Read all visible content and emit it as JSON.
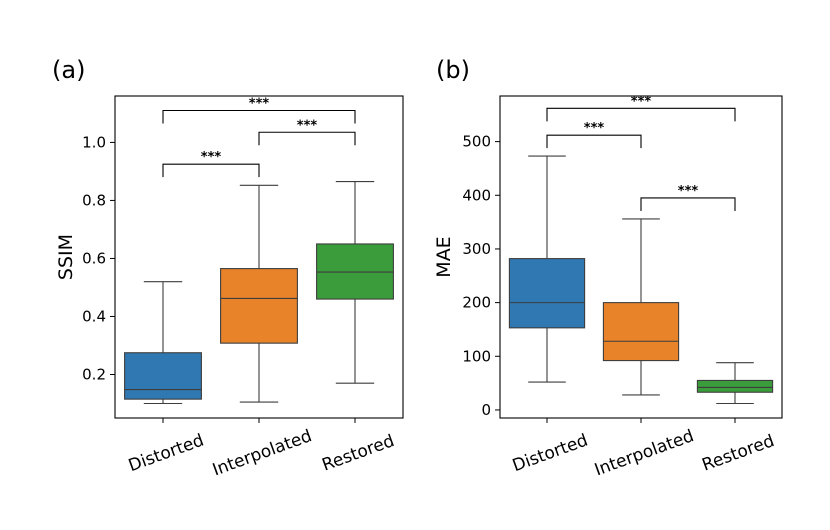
{
  "chart_data": [
    {
      "type": "box",
      "panel_label": "(a)",
      "ylabel": "SSIM",
      "ylim": [
        0.05,
        1.16
      ],
      "yticks": [
        0.2,
        0.4,
        0.6,
        0.8,
        1.0
      ],
      "ytick_labels": [
        "0.2",
        "0.4",
        "0.6",
        "0.8",
        "1.0"
      ],
      "categories": [
        "Distorted",
        "Interpolated",
        "Restored"
      ],
      "boxes": [
        {
          "name": "Distorted",
          "color": "#2f78b2",
          "whislo": 0.1,
          "q1": 0.115,
          "med": 0.148,
          "q3": 0.275,
          "whishi": 0.52
        },
        {
          "name": "Interpolated",
          "color": "#e8832a",
          "whislo": 0.105,
          "q1": 0.308,
          "med": 0.462,
          "q3": 0.565,
          "whishi": 0.852
        },
        {
          "name": "Restored",
          "color": "#3a9c3a",
          "whislo": 0.17,
          "q1": 0.46,
          "med": 0.553,
          "q3": 0.65,
          "whishi": 0.865
        }
      ],
      "significance": [
        {
          "from": 0,
          "to": 1,
          "level": 0.925,
          "label": "***"
        },
        {
          "from": 1,
          "to": 2,
          "level": 1.035,
          "label": "***"
        },
        {
          "from": 0,
          "to": 2,
          "level": 1.11,
          "label": "***"
        }
      ]
    },
    {
      "type": "box",
      "panel_label": "(b)",
      "ylabel": "MAE",
      "ylim": [
        -15,
        585
      ],
      "yticks": [
        0,
        100,
        200,
        300,
        400,
        500
      ],
      "ytick_labels": [
        "0",
        "100",
        "200",
        "300",
        "400",
        "500"
      ],
      "categories": [
        "Distorted",
        "Interpolated",
        "Restored"
      ],
      "boxes": [
        {
          "name": "Distorted",
          "color": "#2f78b2",
          "whislo": 52,
          "q1": 153,
          "med": 200,
          "q3": 282,
          "whishi": 473
        },
        {
          "name": "Interpolated",
          "color": "#e8832a",
          "whislo": 28,
          "q1": 92,
          "med": 128,
          "q3": 200,
          "whishi": 356
        },
        {
          "name": "Restored",
          "color": "#3a9c3a",
          "whislo": 12,
          "q1": 33,
          "med": 42,
          "q3": 55,
          "whishi": 88
        }
      ],
      "significance": [
        {
          "from": 0,
          "to": 1,
          "level": 512,
          "label": "***"
        },
        {
          "from": 1,
          "to": 2,
          "level": 395,
          "label": "***"
        },
        {
          "from": 0,
          "to": 2,
          "level": 562,
          "label": "***"
        }
      ]
    }
  ]
}
